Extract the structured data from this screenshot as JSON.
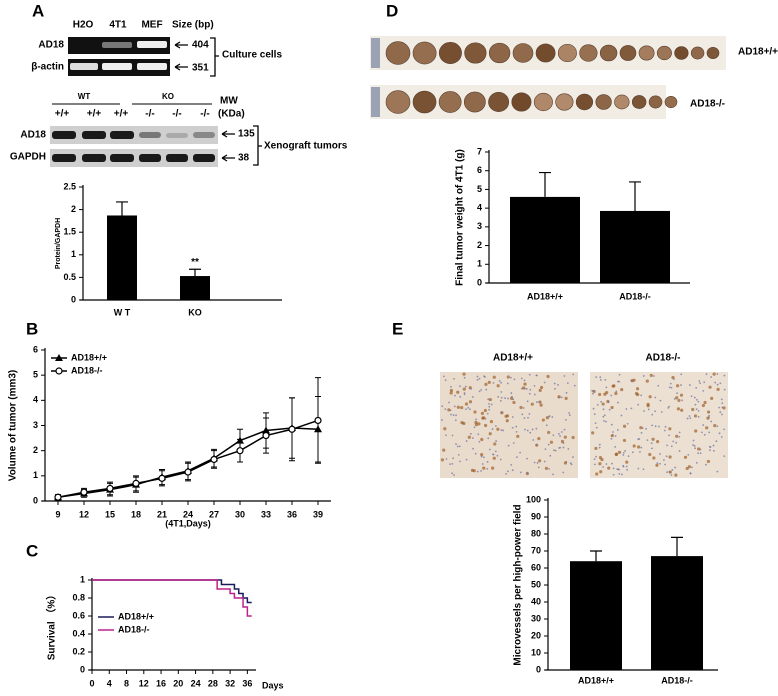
{
  "panel_labels": [
    "A",
    "B",
    "C",
    "D",
    "E"
  ],
  "culture_blot": {
    "lanes": [
      "H2O",
      "4T1",
      "MEF"
    ],
    "size_header": "Size (bp)",
    "rows": [
      {
        "name": "AD18",
        "size": 404
      },
      {
        "name": "β-actin",
        "size": 351
      }
    ],
    "group_label": "Culture cells"
  },
  "xenograft_blot": {
    "groups": [
      "WT",
      "KO"
    ],
    "genotypes": [
      "+/+",
      "+/+",
      "+/+",
      "-/-",
      "-/-",
      "-/-"
    ],
    "mw_header": [
      "MW",
      "(KDa)"
    ],
    "rows": [
      {
        "name": "AD18",
        "size": 135
      },
      {
        "name": "GAPDH",
        "size": 38
      }
    ],
    "group_label": "Xenograft tumors"
  },
  "tumor_photo_labels": [
    "AD18+/+",
    "AD18-/-"
  ],
  "ihc_labels": [
    "AD18+/+",
    "AD18-/-"
  ],
  "chart_data": [
    {
      "type": "bar",
      "y_label": "Protein/GAPDH",
      "categories": [
        "W T",
        "KO"
      ],
      "values": [
        1.87,
        0.53
      ],
      "errors": [
        0.3,
        0.15
      ],
      "significance": [
        null,
        "**"
      ],
      "color": "#000000",
      "ylim": [
        0,
        2.5
      ],
      "yticks": [
        0,
        0.5,
        1,
        1.5,
        2,
        2.5
      ],
      "grid": false
    },
    {
      "type": "line",
      "x_label": "(4T1,Days)",
      "y_label": "Volume of tumor (mm3)",
      "x": [
        9,
        12,
        15,
        18,
        21,
        24,
        27,
        30,
        33,
        36,
        39
      ],
      "xlim": [
        7.5,
        40.5
      ],
      "xticks": [
        9,
        12,
        15,
        18,
        21,
        24,
        27,
        30,
        33,
        36,
        39
      ],
      "ylim": [
        0,
        6
      ],
      "yticks": [
        0,
        1,
        2,
        3,
        4,
        5,
        6
      ],
      "grid": false,
      "legend": "upper left",
      "series": [
        {
          "name": "AD18+/+",
          "color": "#000000",
          "marker": "triangle",
          "values": [
            0.15,
            0.3,
            0.45,
            0.65,
            0.95,
            1.2,
            1.7,
            2.4,
            2.8,
            2.9,
            2.85
          ],
          "errors": [
            0.1,
            0.15,
            0.25,
            0.3,
            0.3,
            0.35,
            0.35,
            0.45,
            0.7,
            1.2,
            1.3
          ]
        },
        {
          "name": "AD18-/-",
          "color": "#000000",
          "marker": "circle",
          "values": [
            0.15,
            0.35,
            0.5,
            0.7,
            0.9,
            1.15,
            1.65,
            2.0,
            2.6,
            2.85,
            3.2
          ],
          "errors": [
            0.1,
            0.15,
            0.25,
            0.3,
            0.3,
            0.35,
            0.35,
            0.45,
            0.7,
            1.25,
            1.7
          ]
        }
      ]
    },
    {
      "type": "step",
      "x_label": "Days",
      "y_label": "Survival （%）",
      "x": [
        0,
        28,
        29,
        30,
        32,
        33,
        34,
        35,
        36,
        37
      ],
      "xlim": [
        0,
        38
      ],
      "xticks": [
        0,
        4,
        8,
        12,
        16,
        20,
        24,
        28,
        32,
        36
      ],
      "ylim": [
        0,
        1
      ],
      "yticks": [
        0,
        0.2,
        0.4,
        0.6,
        0.8,
        1
      ],
      "grid": false,
      "legend": "center left",
      "series": [
        {
          "name": "AD18+/+",
          "color": "#1a1a5e",
          "values": [
            1,
            1,
            1,
            0.95,
            0.95,
            0.9,
            0.85,
            0.8,
            0.75,
            0.75
          ]
        },
        {
          "name": "AD18-/-",
          "color": "#c0228a",
          "values": [
            1,
            1,
            0.9,
            0.9,
            0.85,
            0.8,
            0.8,
            0.7,
            0.6,
            0.6
          ]
        }
      ]
    },
    {
      "type": "bar",
      "y_label": "Final tumor weight of 4T1 (g)",
      "categories": [
        "AD18+/+",
        "AD18-/-"
      ],
      "values": [
        4.6,
        3.85
      ],
      "errors": [
        1.3,
        1.55
      ],
      "color": "#000000",
      "ylim": [
        0,
        7
      ],
      "yticks": [
        0,
        1,
        2,
        3,
        4,
        5,
        6,
        7
      ],
      "grid": false
    },
    {
      "type": "bar",
      "y_label": "Microvessels per high-power field",
      "categories": [
        "AD18+/+",
        "AD18-/-"
      ],
      "values": [
        64,
        67
      ],
      "errors": [
        6,
        11
      ],
      "color": "#000000",
      "ylim": [
        0,
        100
      ],
      "yticks": [
        0,
        10,
        20,
        30,
        40,
        50,
        60,
        70,
        80,
        90,
        100
      ],
      "grid": false
    }
  ]
}
